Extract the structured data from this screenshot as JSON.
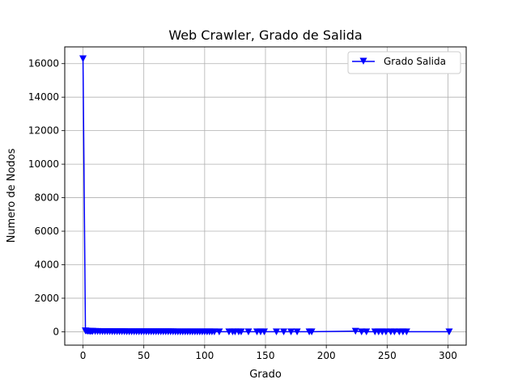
{
  "chart_data": {
    "type": "line",
    "title": "Web Crawler, Grado de Salida",
    "xlabel": "Grado",
    "ylabel": "Numero de Nodos",
    "xlim": [
      -15,
      315
    ],
    "ylim": [
      -800,
      17000
    ],
    "xticks": [
      0,
      50,
      100,
      150,
      200,
      250,
      300
    ],
    "yticks": [
      0,
      2000,
      4000,
      6000,
      8000,
      10000,
      12000,
      14000,
      16000
    ],
    "grid": true,
    "legend_position": "top-right",
    "colors": {
      "series": "#0000ff",
      "grid": "#b0b0b0"
    },
    "series": [
      {
        "name": "Grado Salida",
        "marker": "triangle-down",
        "x": [
          0,
          2,
          3,
          4,
          5,
          6,
          7,
          8,
          10,
          12,
          14,
          16,
          18,
          20,
          22,
          24,
          26,
          28,
          30,
          32,
          34,
          36,
          38,
          40,
          42,
          44,
          46,
          48,
          50,
          52,
          54,
          56,
          58,
          60,
          62,
          64,
          66,
          68,
          70,
          72,
          74,
          76,
          78,
          80,
          82,
          84,
          86,
          88,
          90,
          92,
          94,
          96,
          98,
          100,
          102,
          104,
          106,
          108,
          112,
          120,
          123,
          125,
          128,
          130,
          136,
          143,
          146,
          149,
          159,
          165,
          171,
          176,
          186,
          188,
          224,
          229,
          233,
          240,
          243,
          246,
          249,
          253,
          256,
          260,
          263,
          266,
          301
        ],
        "y": [
          16300,
          60,
          50,
          45,
          40,
          35,
          30,
          30,
          25,
          25,
          20,
          20,
          20,
          18,
          18,
          15,
          15,
          15,
          12,
          12,
          12,
          10,
          10,
          10,
          10,
          10,
          8,
          8,
          8,
          8,
          6,
          6,
          6,
          6,
          6,
          5,
          5,
          5,
          5,
          5,
          5,
          4,
          4,
          4,
          4,
          4,
          4,
          3,
          3,
          3,
          3,
          3,
          3,
          3,
          2,
          2,
          2,
          2,
          2,
          2,
          2,
          2,
          2,
          2,
          1,
          1,
          1,
          1,
          1,
          1,
          1,
          1,
          1,
          1,
          40,
          2,
          1,
          1,
          1,
          1,
          1,
          1,
          1,
          1,
          1,
          1,
          1
        ]
      }
    ]
  }
}
